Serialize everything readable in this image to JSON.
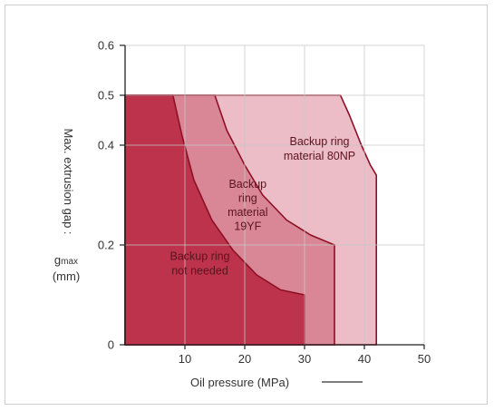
{
  "chart_data": {
    "type": "area",
    "xlabel": "Oil pressure (MPa)",
    "ylabel": {
      "line1": "Max. extrusion gap :",
      "symbol": "g",
      "subscript": "max",
      "unit": "(mm)"
    },
    "xlim": [
      0,
      50
    ],
    "ylim": [
      0,
      0.6
    ],
    "x_ticks": [
      0,
      10,
      20,
      30,
      40,
      50
    ],
    "x_tick_labels": [
      "10",
      "20",
      "30",
      "40",
      "50"
    ],
    "y_ticks": [
      0,
      0.2,
      0.4,
      0.5,
      0.6
    ],
    "y_tick_labels": [
      "0",
      "0.2",
      "0.4",
      "0.5",
      "0.6"
    ],
    "grid": true,
    "colors": {
      "outer_region": "#eab6c1",
      "middle_region": "#d77f90",
      "inner_region": "#b82a42",
      "boundary": "#8e1025"
    },
    "series": [
      {
        "name": "Backup ring material 80NP",
        "label_lines": [
          "Backup ring",
          "material 80NP"
        ],
        "boundary": [
          [
            0,
            0.5
          ],
          [
            36,
            0.5
          ],
          [
            37.5,
            0.46
          ],
          [
            39.5,
            0.4
          ],
          [
            41,
            0.36
          ],
          [
            42,
            0.34
          ],
          [
            42,
            0
          ]
        ]
      },
      {
        "name": "Backup ring material 19YF",
        "label_lines": [
          "Backup",
          "ring",
          "material",
          "19YF"
        ],
        "boundary": [
          [
            0,
            0.5
          ],
          [
            15,
            0.5
          ],
          [
            17,
            0.43
          ],
          [
            20,
            0.36
          ],
          [
            23,
            0.3
          ],
          [
            27,
            0.25
          ],
          [
            31,
            0.22
          ],
          [
            35,
            0.2
          ],
          [
            35,
            0
          ]
        ]
      },
      {
        "name": "Backup ring not needed",
        "label_lines": [
          "Backup ring",
          "not needed"
        ],
        "boundary": [
          [
            0,
            0.5
          ],
          [
            8,
            0.5
          ],
          [
            9.5,
            0.42
          ],
          [
            11.5,
            0.33
          ],
          [
            14.5,
            0.25
          ],
          [
            18,
            0.19
          ],
          [
            22,
            0.14
          ],
          [
            26,
            0.11
          ],
          [
            30,
            0.1
          ],
          [
            30,
            0
          ]
        ]
      }
    ]
  }
}
